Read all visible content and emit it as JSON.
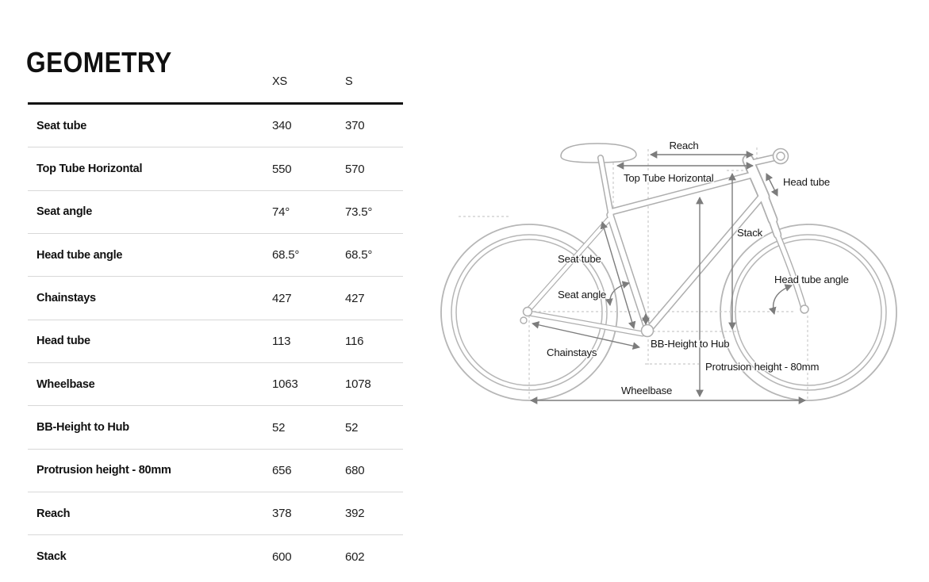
{
  "page": {
    "title": "GEOMETRY"
  },
  "table": {
    "columns": [
      "XS",
      "S"
    ],
    "rows": [
      {
        "label": "Seat tube",
        "xs": "340",
        "s": "370"
      },
      {
        "label": "Top Tube Horizontal",
        "xs": "550",
        "s": "570"
      },
      {
        "label": "Seat angle",
        "xs": "74°",
        "s": "73.5°"
      },
      {
        "label": "Head tube angle",
        "xs": "68.5°",
        "s": "68.5°"
      },
      {
        "label": "Chainstays",
        "xs": "427",
        "s": "427"
      },
      {
        "label": "Head tube",
        "xs": "113",
        "s": "116"
      },
      {
        "label": "Wheelbase",
        "xs": "1063",
        "s": "1078"
      },
      {
        "label": "BB-Height to Hub",
        "xs": "52",
        "s": "52"
      },
      {
        "label": "Protrusion height - 80mm",
        "xs": "656",
        "s": "680"
      },
      {
        "label": "Reach",
        "xs": "378",
        "s": "392"
      },
      {
        "label": "Stack",
        "xs": "600",
        "s": "602"
      }
    ]
  },
  "diagram": {
    "labels": {
      "reach": "Reach",
      "top_tube_horizontal": "Top Tube Horizontal",
      "head_tube": "Head tube",
      "stack": "Stack",
      "seat_tube": "Seat tube",
      "seat_angle": "Seat angle",
      "head_tube_angle": "Head tube angle",
      "chainstays": "Chainstays",
      "bb_height_to_hub": "BB-Height to Hub",
      "protrusion_height": "Protrusion height - 80mm",
      "wheelbase": "Wheelbase"
    },
    "colors": {
      "heading_text": "#101010",
      "table_header_rule": "#111111",
      "table_separator": "#d8d8d8",
      "diagram_outline": "#aeaeae",
      "diagram_wheel": "#b6b6b6",
      "diagram_arrow": "#7c7c7c",
      "diagram_dashed": "#cbcbcb",
      "diagram_text": "#161616"
    }
  }
}
